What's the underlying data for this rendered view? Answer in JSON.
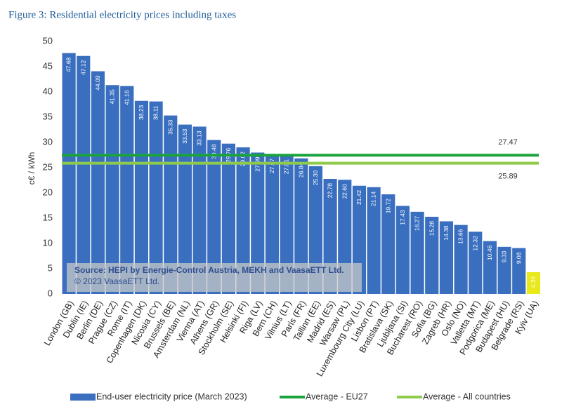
{
  "chart_data": {
    "type": "bar",
    "title": "Figure 3: Residential electricity prices including taxes",
    "y_label": "c€ / kWh",
    "categories": [
      "London (GB)",
      "Dublin (IE)",
      "Berlin (DE)",
      "Prague (CZ)",
      "Rome (IT)",
      "Copenhagen (DK)",
      "Nicosia (CY)",
      "Brussels (BE)",
      "Amsterdam (NL)",
      "Vienna (AT)",
      "Athens (GR)",
      "Stockholm (SE)",
      "Helsinki (FI)",
      "Riga (LV)",
      "Bern (CH)",
      "Vilnius (LT)",
      "Paris (FR)",
      "Tallinn (EE)",
      "Madrid (ES)",
      "Warsaw (PL)",
      "Luxembourg City (LU)",
      "Lisbon (PT)",
      "Bratislava (SK)",
      "Ljubljana (SI)",
      "Bucharest (RO)",
      "Sofia (BG)",
      "Zagreb (HR)",
      "Oslo (NO)",
      "Valletta (MT)",
      "Podgorica (ME)",
      "Budapest (HU)",
      "Belgrade (RS)",
      "Kyiv (UA)"
    ],
    "series": [
      {
        "name": "End-user electricity price (March 2023)",
        "color": "#3a6fc0",
        "values": [
          47.68,
          47.12,
          44.09,
          41.35,
          41.16,
          38.23,
          38.11,
          35.33,
          33.53,
          33.13,
          30.48,
          29.76,
          29.02,
          27.99,
          27.67,
          27.51,
          26.84,
          25.3,
          22.78,
          22.6,
          21.42,
          21.14,
          19.72,
          17.43,
          16.27,
          15.28,
          14.38,
          13.66,
          12.32,
          10.46,
          9.33,
          9.08,
          4.3
        ],
        "value_labels": [
          "47.68",
          "47.12",
          "44.09",
          "41.35",
          "41.16",
          "38.23",
          "38.11",
          "35.33",
          "33.53",
          "33.13",
          "30.48",
          "29.76",
          "29.02",
          "27.99",
          "27.67",
          "27.51",
          "26.84",
          "25.30",
          "22.78",
          "22.60",
          "21.42",
          "21.14",
          "19.72",
          "17.43",
          "16.27",
          "15.28",
          "14.38",
          "13.66",
          "12.32",
          "10.46",
          "9.33",
          "9.08",
          "4.30"
        ],
        "bar_colors": [
          "#3a6fc0",
          "#3a6fc0",
          "#3a6fc0",
          "#3a6fc0",
          "#3a6fc0",
          "#3a6fc0",
          "#3a6fc0",
          "#3a6fc0",
          "#3a6fc0",
          "#3a6fc0",
          "#3a6fc0",
          "#3a6fc0",
          "#3a6fc0",
          "#3a6fc0",
          "#3a6fc0",
          "#3a6fc0",
          "#3a6fc0",
          "#3a6fc0",
          "#3a6fc0",
          "#3a6fc0",
          "#3a6fc0",
          "#3a6fc0",
          "#3a6fc0",
          "#3a6fc0",
          "#3a6fc0",
          "#3a6fc0",
          "#3a6fc0",
          "#3a6fc0",
          "#3a6fc0",
          "#3a6fc0",
          "#3a6fc0",
          "#3a6fc0",
          "#e8e81a"
        ]
      },
      {
        "name": "Average - EU27",
        "color": "#1aa33c",
        "type": "hline",
        "value": 27.47,
        "value_label": "27.47"
      },
      {
        "name": "Average - All countries",
        "color": "#8fcb4a",
        "type": "hline",
        "value": 25.89,
        "value_label": "25.89"
      }
    ],
    "ylim": [
      0,
      50
    ],
    "yticks": [
      0,
      5,
      10,
      15,
      20,
      25,
      30,
      35,
      40,
      45,
      50
    ],
    "source": "Source: HEPI by Energie-Control Austria, MEKH and VaasaETT Ltd.",
    "copyright": "© 2023 VaasaETT Ltd."
  }
}
